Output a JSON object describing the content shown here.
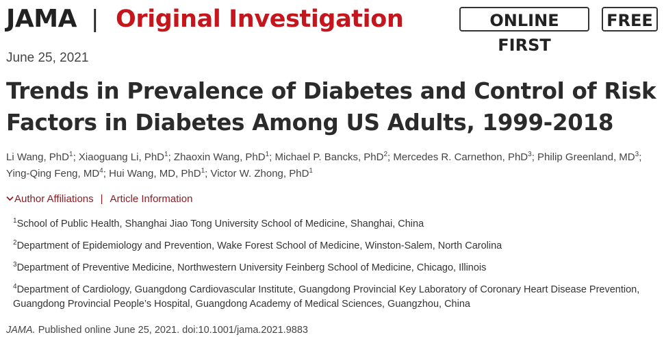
{
  "masthead": {
    "brand": "JAMA",
    "separator": "|",
    "section_type": "Original Investigation",
    "badges": [
      "ONLINE FIRST",
      "FREE"
    ]
  },
  "article": {
    "date": "June 25, 2021",
    "title": "Trends in Prevalence of Diabetes and Control of Risk Factors in Diabetes Among US Adults, 1999-2018",
    "authors": [
      {
        "name": "Li Wang, PhD",
        "sup": "1"
      },
      {
        "name": "Xiaoguang Li, PhD",
        "sup": "1"
      },
      {
        "name": "Zhaoxin Wang, PhD",
        "sup": "1"
      },
      {
        "name": "Michael P. Bancks, PhD",
        "sup": "2"
      },
      {
        "name": "Mercedes R. Carnethon, PhD",
        "sup": "3"
      },
      {
        "name": "Philip Greenland, MD",
        "sup": "3"
      },
      {
        "name": "Ying-Qing Feng, MD",
        "sup": "4"
      },
      {
        "name": "Hui Wang, MD, PhD",
        "sup": "1"
      },
      {
        "name": "Victor W. Zhong, PhD",
        "sup": "1"
      }
    ],
    "links": {
      "author_affiliations": "Author Affiliations",
      "separator": "|",
      "article_information": "Article Information"
    },
    "affiliations": [
      {
        "num": "1",
        "text": "School of Public Health, Shanghai Jiao Tong University School of Medicine, Shanghai, China"
      },
      {
        "num": "2",
        "text": "Department of Epidemiology and Prevention, Wake Forest School of Medicine, Winston-Salem, North Carolina"
      },
      {
        "num": "3",
        "text": "Department of Preventive Medicine, Northwestern University Feinberg School of Medicine, Chicago, Illinois"
      },
      {
        "num": "4",
        "text": "Department of Cardiology, Guangdong Cardiovascular Institute, Guangdong Provincial Key Laboratory of Coronary Heart Disease Prevention, Guangdong Provincial People’s Hospital, Guangdong Academy of Medical Sciences, Guangzhou, China"
      }
    ],
    "citation": {
      "journal": "JAMA.",
      "text": " Published online June 25, 2021. doi:10.1001/jama.2021.9883"
    }
  },
  "colors": {
    "accent_red": "#c4161c",
    "link_red": "#8b1d22",
    "text": "#333333"
  },
  "icons": {
    "author_affiliations_toggle": "chevron-down-icon"
  }
}
